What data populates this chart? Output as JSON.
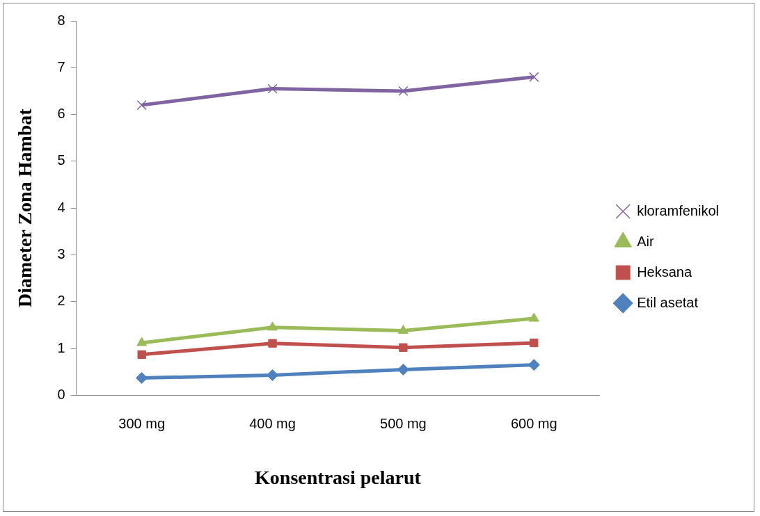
{
  "chart_data": {
    "type": "line",
    "xlabel": "Konsentrasi pelarut",
    "ylabel": "Diameter Zona Hambat",
    "categories": [
      "300 mg",
      "400 mg",
      "500 mg",
      "600 mg"
    ],
    "series": [
      {
        "name": "kloramfenikol",
        "color": "#8064a2",
        "marker": "cross",
        "values": [
          6.2,
          6.55,
          6.5,
          6.8
        ]
      },
      {
        "name": "Air",
        "color": "#9bbb59",
        "marker": "triangle",
        "values": [
          1.12,
          1.45,
          1.38,
          1.64
        ]
      },
      {
        "name": "Heksana",
        "color": "#c0504d",
        "marker": "square",
        "values": [
          0.87,
          1.11,
          1.02,
          1.12
        ]
      },
      {
        "name": "Etil asetat",
        "color": "#4f81bd",
        "marker": "diamond",
        "values": [
          0.37,
          0.43,
          0.55,
          0.65
        ]
      }
    ],
    "ylim": [
      0,
      8
    ],
    "yticks": [
      0,
      1,
      2,
      3,
      4,
      5,
      6,
      7,
      8
    ],
    "grid": false,
    "legend": "right",
    "line_style": "solid"
  }
}
